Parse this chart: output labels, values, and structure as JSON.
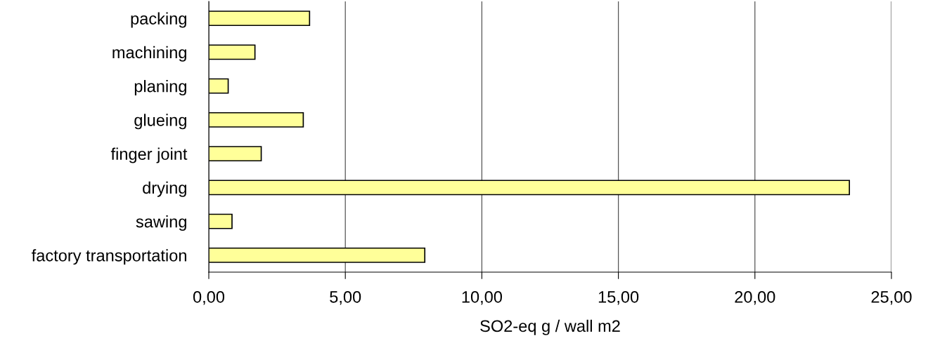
{
  "chart_data": {
    "type": "bar",
    "orientation": "horizontal",
    "xlabel": "SO2-eq g / wall m2",
    "categories": [
      "packing",
      "machining",
      "planing",
      "glueing",
      "finger joint",
      "drying",
      "sawing",
      "factory transportation"
    ],
    "values": [
      3.69,
      1.69,
      0.71,
      3.46,
      1.92,
      23.46,
      0.85,
      7.91
    ],
    "color": "#ffff99",
    "xlim": [
      0,
      25
    ],
    "xticks": [
      {
        "value": 0,
        "label": "0,00"
      },
      {
        "value": 5,
        "label": "5,00"
      },
      {
        "value": 10,
        "label": "10,00"
      },
      {
        "value": 15,
        "label": "15,00"
      },
      {
        "value": 20,
        "label": "20,00"
      },
      {
        "value": 25,
        "label": "25,00"
      }
    ],
    "grid": "x"
  }
}
